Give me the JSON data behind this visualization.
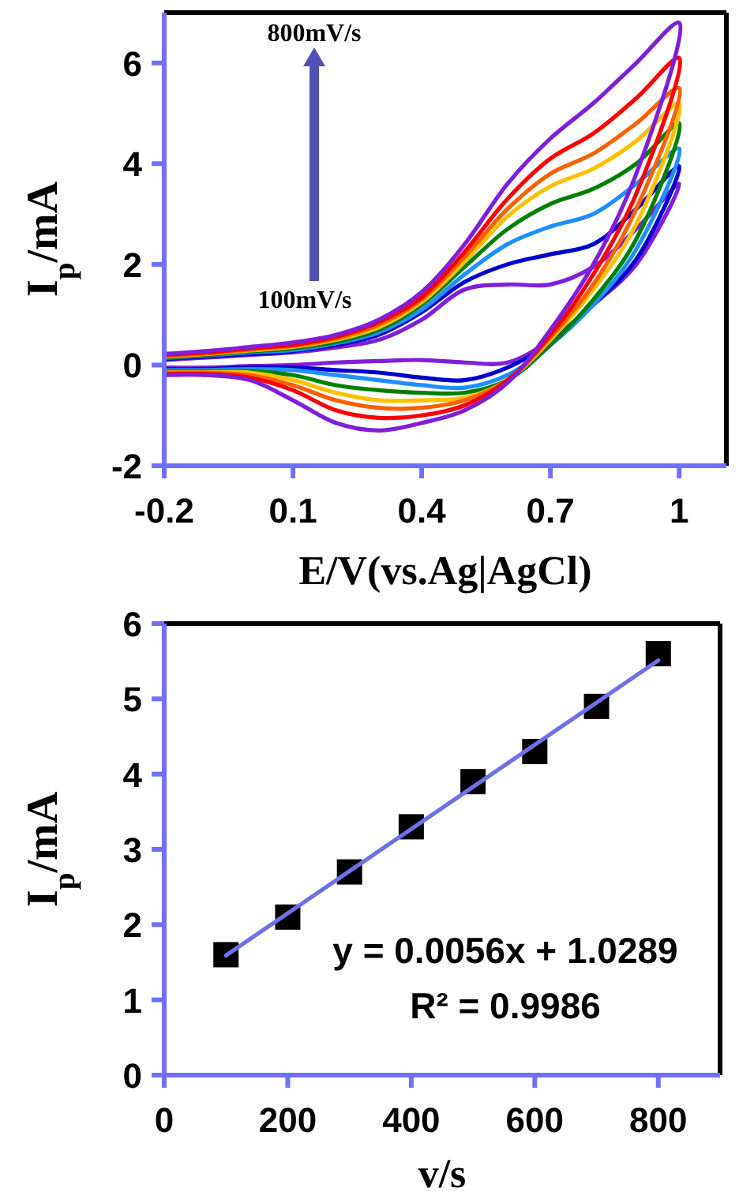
{
  "chart_data": [
    {
      "type": "line",
      "xlabel": "E/V(vs.Ag|AgCl)",
      "ylabel": "I$_{p}$/mA",
      "xlim": [
        -0.2,
        1.11
      ],
      "ylim": [
        -2,
        7
      ],
      "xticks": [
        -0.2,
        0.1,
        0.4,
        0.7,
        1
      ],
      "yticks": [
        -2,
        0,
        2,
        4,
        6
      ],
      "grid": false,
      "line_style": "solid",
      "annotations": [
        "800mV/s",
        "100mV/s"
      ],
      "x": [
        -0.2,
        -0.1,
        0,
        0.1,
        0.2,
        0.3,
        0.4,
        0.5,
        0.6,
        0.7,
        0.8,
        0.9,
        1.0,
        0.9,
        0.8,
        0.7,
        0.6,
        0.5,
        0.4,
        0.3,
        0.2,
        0.1,
        0,
        -0.1,
        -0.2
      ],
      "series": [
        {
          "color": "#7f1fd9",
          "values": [
            0.1,
            0.15,
            0.2,
            0.25,
            0.35,
            0.5,
            0.9,
            1.5,
            1.6,
            1.6,
            1.95,
            2.7,
            3.6,
            2.0,
            1.2,
            0.5,
            0.05,
            0.05,
            0.1,
            0.08,
            0.05,
            0.0,
            -0.02,
            -0.05,
            -0.05
          ]
        },
        {
          "color": "#0000cd",
          "values": [
            0.12,
            0.17,
            0.22,
            0.28,
            0.4,
            0.6,
            1.05,
            1.65,
            2.0,
            2.2,
            2.4,
            3.1,
            3.95,
            2.1,
            1.2,
            0.45,
            -0.05,
            -0.3,
            -0.25,
            -0.15,
            -0.1,
            -0.05,
            -0.05,
            -0.08,
            -0.08
          ]
        },
        {
          "color": "#1e90ff",
          "values": [
            0.14,
            0.19,
            0.25,
            0.3,
            0.43,
            0.65,
            1.1,
            1.8,
            2.4,
            2.75,
            3.0,
            3.6,
            4.3,
            2.3,
            1.2,
            0.4,
            -0.2,
            -0.45,
            -0.4,
            -0.3,
            -0.2,
            -0.1,
            -0.08,
            -0.1,
            -0.1
          ]
        },
        {
          "color": "#008000",
          "values": [
            0.15,
            0.2,
            0.27,
            0.33,
            0.46,
            0.7,
            1.2,
            1.95,
            2.7,
            3.2,
            3.5,
            4.0,
            4.8,
            2.5,
            1.3,
            0.4,
            -0.3,
            -0.55,
            -0.55,
            -0.5,
            -0.4,
            -0.2,
            -0.12,
            -0.12,
            -0.12
          ]
        },
        {
          "color": "#ffc000",
          "values": [
            0.17,
            0.22,
            0.29,
            0.36,
            0.5,
            0.75,
            1.25,
            2.05,
            2.95,
            3.55,
            3.9,
            4.45,
            5.2,
            2.8,
            1.5,
            0.5,
            -0.3,
            -0.65,
            -0.7,
            -0.7,
            -0.55,
            -0.3,
            -0.15,
            -0.14,
            -0.14
          ]
        },
        {
          "color": "#ff6000",
          "values": [
            0.18,
            0.23,
            0.31,
            0.38,
            0.53,
            0.8,
            1.3,
            2.15,
            3.1,
            3.8,
            4.2,
            4.8,
            5.5,
            3.1,
            1.6,
            0.55,
            -0.3,
            -0.7,
            -0.85,
            -0.85,
            -0.7,
            -0.4,
            -0.2,
            -0.15,
            -0.15
          ]
        },
        {
          "color": "#ff0000",
          "values": [
            0.2,
            0.25,
            0.33,
            0.4,
            0.56,
            0.85,
            1.35,
            2.25,
            3.3,
            4.1,
            4.6,
            5.3,
            6.1,
            3.4,
            1.8,
            0.6,
            -0.3,
            -0.8,
            -1.0,
            -1.05,
            -0.9,
            -0.5,
            -0.25,
            -0.18,
            -0.18
          ]
        },
        {
          "color": "#7f1fd9",
          "values": [
            0.22,
            0.28,
            0.36,
            0.45,
            0.6,
            0.9,
            1.45,
            2.4,
            3.6,
            4.5,
            5.2,
            6.0,
            6.8,
            3.8,
            2.0,
            0.7,
            -0.35,
            -0.9,
            -1.15,
            -1.3,
            -1.15,
            -0.7,
            -0.3,
            -0.2,
            -0.2
          ]
        }
      ]
    },
    {
      "type": "scatter",
      "xlabel": "v/s",
      "ylabel": "I$_{p}$/mA",
      "xlim": [
        0,
        900
      ],
      "ylim": [
        0,
        6
      ],
      "xticks": [
        0,
        200,
        400,
        600,
        800
      ],
      "yticks": [
        0,
        1,
        2,
        3,
        4,
        5,
        6
      ],
      "grid": false,
      "annotations": [
        "y = 0.0056x + 1.0289",
        "R² = 0.9986"
      ],
      "x": [
        100,
        200,
        300,
        400,
        500,
        600,
        700,
        800
      ],
      "series": [
        {
          "color": "#000000",
          "marker": "square",
          "values": [
            1.6,
            2.1,
            2.7,
            3.3,
            3.9,
            4.3,
            4.9,
            5.6
          ]
        },
        {
          "type": "line",
          "color": "#7070e8",
          "x": [
            100,
            800
          ],
          "values": [
            1.59,
            5.51
          ]
        }
      ]
    }
  ]
}
